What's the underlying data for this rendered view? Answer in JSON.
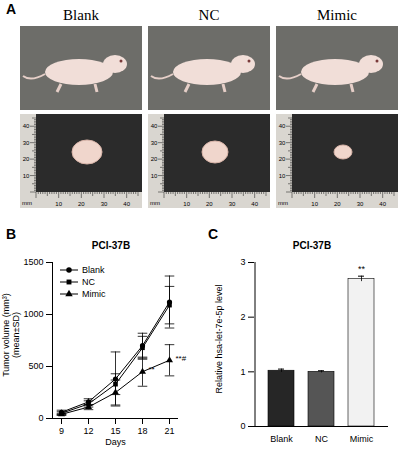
{
  "figure": {
    "panel_labels": [
      "A",
      "B",
      "C"
    ]
  },
  "photo_panel": {
    "groups": [
      "Blank",
      "NC",
      "Mimic"
    ],
    "ruler_unit": "mm",
    "ruler_marks": [
      10,
      20,
      30,
      40
    ]
  },
  "chart_data": [
    {
      "type": "line",
      "title": "PCI-37B",
      "x_label": "Days",
      "y_label": "Tumor volume (mm³)\n(mean±SD)",
      "x": [
        9,
        12,
        15,
        18,
        21
      ],
      "xlim": [
        8,
        22
      ],
      "xticks": [
        9,
        12,
        15,
        18,
        21
      ],
      "ylim": [
        0,
        1500
      ],
      "yticks": [
        0,
        500,
        1000,
        1500
      ],
      "legend": "top-left",
      "series": [
        {
          "name": "Blank",
          "color": "#000000",
          "marker": "circle",
          "values": [
            60,
            160,
            380,
            700,
            1120
          ],
          "errors": [
            20,
            30,
            260,
            120,
            250
          ]
        },
        {
          "name": "NC",
          "color": "#000000",
          "marker": "square",
          "values": [
            50,
            140,
            330,
            680,
            1090
          ],
          "errors": [
            15,
            30,
            100,
            110,
            180
          ]
        },
        {
          "name": "Mimic",
          "color": "#000000",
          "marker": "triangle",
          "values": [
            40,
            110,
            250,
            450,
            560
          ],
          "errors": [
            10,
            25,
            120,
            140,
            150
          ]
        }
      ],
      "annotations": [
        {
          "series": "Mimic",
          "x": 18,
          "text": "**"
        },
        {
          "series": "Mimic",
          "x": 21,
          "text": "**#"
        }
      ]
    },
    {
      "type": "bar",
      "title": "PCI-37B",
      "y_label": "Relative hsa-let-7e-5p level",
      "categories": [
        "Blank",
        "NC",
        "Mimic"
      ],
      "values": [
        1.02,
        1.0,
        2.7
      ],
      "errors": [
        0.03,
        0.02,
        0.05
      ],
      "colors": [
        "#262626",
        "#555555",
        "#f2f2f2"
      ],
      "ylim": [
        0,
        3
      ],
      "yticks": [
        0,
        1,
        2,
        3
      ],
      "annotations": [
        {
          "category": "Mimic",
          "text": "**"
        }
      ]
    }
  ]
}
